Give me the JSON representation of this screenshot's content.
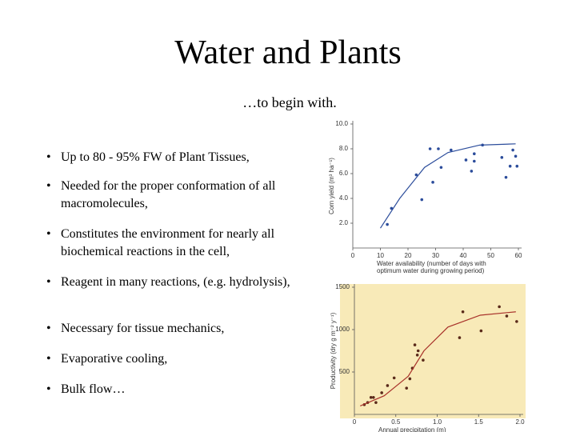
{
  "title": "Water and Plants",
  "subtitle": "…to begin with.",
  "bullets": [
    "Up to 80 - 95% FW of Plant Tissues,",
    "Needed for the proper conformation of all macromolecules,",
    "Constitutes the environment for nearly all biochemical reactions in the cell,",
    "Reagent in many reactions, (e.g. hydrolysis),",
    "Necessary for tissue mechanics,",
    "Evaporative cooling,",
    "Bulk flow…"
  ],
  "chart_data": [
    {
      "type": "scatter",
      "ylabel": "Corn yield (m³ ha⁻¹)",
      "xlabel": [
        "Water availability (number of days with",
        "optimum water during growing period)"
      ],
      "xlim": [
        0,
        60
      ],
      "ylim": [
        0,
        10
      ],
      "xticks": [
        0,
        10,
        20,
        30,
        40,
        50,
        60
      ],
      "yticks": [
        {
          "value": 2,
          "label": "2.0"
        },
        {
          "value": 4,
          "label": "4.0"
        },
        {
          "value": 6,
          "label": "6.0"
        },
        {
          "value": 8,
          "label": "8.0"
        },
        {
          "value": 10,
          "label": "10.0"
        }
      ],
      "series": [
        {
          "color": "#2b4c9b",
          "x": [
            12.5,
            14,
            23,
            25,
            28,
            29,
            31,
            32,
            35.6,
            41,
            43,
            44,
            44,
            47,
            54,
            55.5,
            57,
            58,
            59,
            59.5
          ],
          "values": [
            1.9,
            3.2,
            5.9,
            3.9,
            8.0,
            5.3,
            8.0,
            6.5,
            7.9,
            7.1,
            6.2,
            7.6,
            7.0,
            8.3,
            7.3,
            5.7,
            6.6,
            7.9,
            7.4,
            6.6
          ]
        },
        {
          "color": "#2b4c9b",
          "line": true,
          "x": [
            10,
            17,
            26,
            34.5,
            46,
            59
          ],
          "values": [
            1.6,
            4,
            6.5,
            7.7,
            8.3,
            8.4
          ]
        }
      ]
    },
    {
      "type": "scatter",
      "ylabel": "Productivity (dry g m⁻² y⁻¹)",
      "xlabel": [
        "Annual precipitation (m)"
      ],
      "background": "#f8eab8",
      "xlim": [
        0,
        2
      ],
      "ylim": [
        0,
        1500
      ],
      "xticks": [
        0,
        0.5,
        {
          "value": 1,
          "label": "1.0"
        },
        1.5,
        {
          "value": 2,
          "label": "2.0"
        }
      ],
      "yticks": [
        500,
        1000,
        1500
      ],
      "series": [
        {
          "color": "#5a2a1a",
          "x": [
            0.12,
            0.16,
            0.2,
            0.23,
            0.26,
            0.33,
            0.4,
            0.48,
            0.63,
            0.67,
            0.7,
            0.73,
            0.76,
            0.77,
            0.83,
            1.27,
            1.31,
            1.53,
            1.75,
            1.84,
            1.96
          ],
          "values": [
            115,
            140,
            200,
            200,
            140,
            255,
            340,
            430,
            310,
            420,
            545,
            820,
            700,
            750,
            640,
            905,
            1210,
            985,
            1270,
            1160,
            1095
          ]
        },
        {
          "color": "#a8322a",
          "line": true,
          "x": [
            0.07,
            0.36,
            0.65,
            0.84,
            1.13,
            1.52,
            1.95
          ],
          "values": [
            100,
            220,
            450,
            750,
            1030,
            1170,
            1210
          ]
        }
      ]
    }
  ]
}
